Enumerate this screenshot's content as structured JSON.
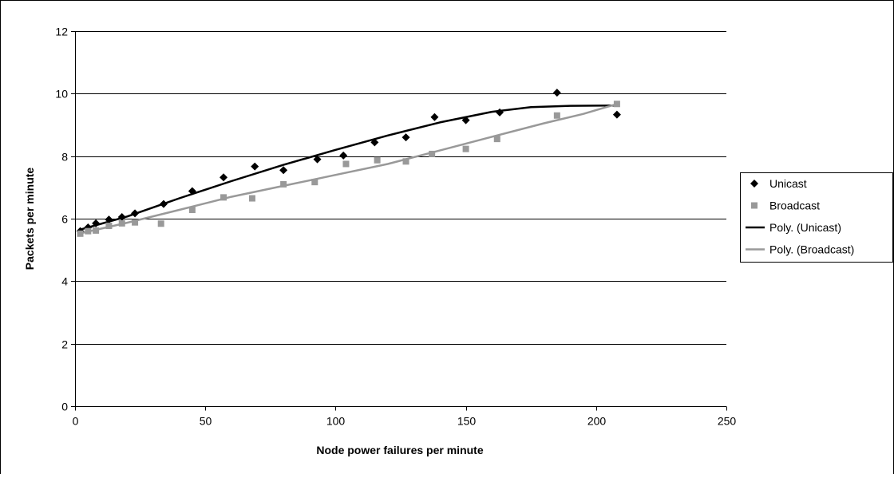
{
  "chart_data": {
    "type": "scatter",
    "xlabel": "Node power failures per minute",
    "ylabel": "Packets per minute",
    "xlim": [
      0,
      250
    ],
    "ylim": [
      0,
      12
    ],
    "xticks": [
      0,
      50,
      100,
      150,
      200,
      250
    ],
    "yticks": [
      0,
      2,
      4,
      6,
      8,
      10,
      12
    ],
    "grid": "horizontal",
    "legend_position": "right",
    "series": [
      {
        "name": "Unicast",
        "marker": "diamond",
        "color": "#000000",
        "points": [
          [
            2,
            5.6
          ],
          [
            5,
            5.72
          ],
          [
            8,
            5.85
          ],
          [
            13,
            5.97
          ],
          [
            18,
            6.05
          ],
          [
            23,
            6.17
          ],
          [
            34,
            6.47
          ],
          [
            45,
            6.88
          ],
          [
            57,
            7.32
          ],
          [
            69,
            7.67
          ],
          [
            80,
            7.55
          ],
          [
            93,
            7.9
          ],
          [
            103,
            8.02
          ],
          [
            115,
            8.44
          ],
          [
            127,
            8.6
          ],
          [
            138,
            9.25
          ],
          [
            150,
            9.15
          ],
          [
            163,
            9.4
          ],
          [
            185,
            10.03
          ],
          [
            208,
            9.33
          ]
        ]
      },
      {
        "name": "Broadcast",
        "marker": "square",
        "color": "#999999",
        "points": [
          [
            2,
            5.52
          ],
          [
            5,
            5.6
          ],
          [
            8,
            5.62
          ],
          [
            13,
            5.77
          ],
          [
            18,
            5.85
          ],
          [
            23,
            5.88
          ],
          [
            33,
            5.84
          ],
          [
            45,
            6.28
          ],
          [
            57,
            6.68
          ],
          [
            68,
            6.65
          ],
          [
            80,
            7.1
          ],
          [
            92,
            7.17
          ],
          [
            104,
            7.75
          ],
          [
            116,
            7.87
          ],
          [
            127,
            7.83
          ],
          [
            137,
            8.07
          ],
          [
            150,
            8.23
          ],
          [
            162,
            8.55
          ],
          [
            185,
            9.3
          ],
          [
            208,
            9.67
          ]
        ]
      },
      {
        "name": "Poly. (Unicast)",
        "kind": "trendline",
        "color": "#000000",
        "points": [
          [
            2,
            5.65
          ],
          [
            20,
            6.07
          ],
          [
            40,
            6.65
          ],
          [
            60,
            7.2
          ],
          [
            80,
            7.72
          ],
          [
            100,
            8.2
          ],
          [
            120,
            8.66
          ],
          [
            140,
            9.08
          ],
          [
            160,
            9.42
          ],
          [
            175,
            9.57
          ],
          [
            190,
            9.61
          ],
          [
            208,
            9.62
          ]
        ]
      },
      {
        "name": "Poly. (Broadcast)",
        "kind": "trendline",
        "color": "#999999",
        "points": [
          [
            2,
            5.53
          ],
          [
            20,
            5.87
          ],
          [
            40,
            6.28
          ],
          [
            60,
            6.7
          ],
          [
            80,
            7.05
          ],
          [
            100,
            7.4
          ],
          [
            120,
            7.75
          ],
          [
            140,
            8.18
          ],
          [
            160,
            8.62
          ],
          [
            180,
            9.05
          ],
          [
            195,
            9.35
          ],
          [
            208,
            9.67
          ]
        ]
      }
    ]
  }
}
